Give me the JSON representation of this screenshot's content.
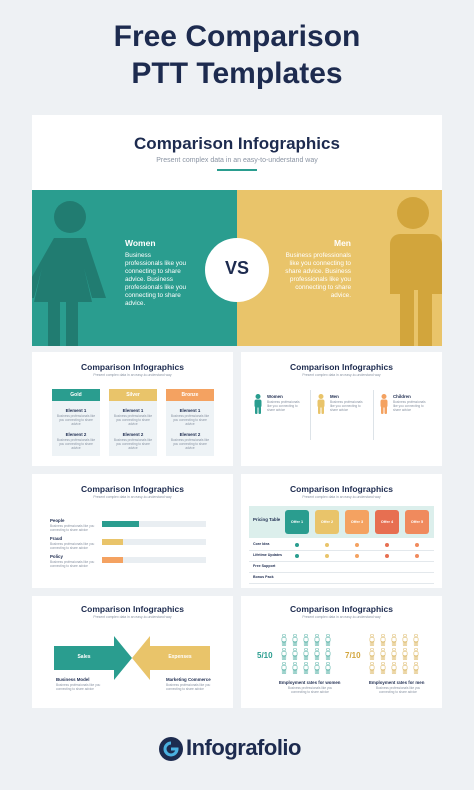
{
  "header": {
    "title_lines": [
      "Free Comparison",
      "PTT Templates"
    ]
  },
  "hero": {
    "title": "Comparison Infographics",
    "subtitle": "Present complex data in an easy-to-understand way",
    "left_label": "Women",
    "left_text": "Business professionals like you connecting to share advice. Business professionals like you connecting to share advice.",
    "vs": "VS",
    "right_label": "Men",
    "right_text": "Business professionals like you connecting to share advice. Business professionals like you connecting to share advice."
  },
  "thumbs": [
    {
      "title": "Comparison Infographics",
      "subtitle": "Present complex data in an easy-to-understand way",
      "columns": [
        {
          "label": "Gold",
          "items": [
            {
              "name": "Element 1",
              "desc": "Business professionals like you connecting to share advice"
            },
            {
              "name": "Element 2",
              "desc": "Business professionals like you connecting to share advice"
            }
          ]
        },
        {
          "label": "Silver",
          "items": [
            {
              "name": "Element 1",
              "desc": "Business professionals like you connecting to share advice"
            },
            {
              "name": "Element 2",
              "desc": "Business professionals like you connecting to share advice"
            }
          ]
        },
        {
          "label": "Bronze",
          "items": [
            {
              "name": "Element 1",
              "desc": "Business professionals like you connecting to share advice"
            },
            {
              "name": "Element 2",
              "desc": "Business professionals like you connecting to share advice"
            }
          ]
        }
      ]
    },
    {
      "title": "Comparison Infographics",
      "subtitle": "Present complex data in an easy-to-understand way",
      "items": [
        {
          "name": "Women",
          "desc": "Business professionals like you connecting to share advice"
        },
        {
          "name": "Men",
          "desc": "Business professionals like you connecting to share advice"
        },
        {
          "name": "Children",
          "desc": "Business professionals like you connecting to share advice"
        }
      ]
    },
    {
      "title": "Comparison Infographics",
      "subtitle": "Present complex data in an easy-to-understand way",
      "rows": [
        {
          "name": "People",
          "desc": "Business professionals like you connecting to share advice",
          "value": 36
        },
        {
          "name": "Fraud",
          "desc": "Business professionals like you connecting to share advice",
          "value": 20
        },
        {
          "name": "Policy",
          "desc": "Business professionals like you connecting to share advice",
          "value": 20
        }
      ]
    },
    {
      "title": "Comparison Infographics",
      "subtitle": "Present complex data in an easy-to-understand way",
      "table_label": "Pricing Table",
      "offers": [
        "Offer 1",
        "Offer 2",
        "Offer 3",
        "Offer 4",
        "Offer 5"
      ],
      "rows": [
        "Core Idea",
        "Lifetime Updates",
        "Free Support",
        "Bonus Pack"
      ]
    },
    {
      "title": "Comparison Infographics",
      "subtitle": "Present complex data in an easy-to-understand way",
      "left_arrow": "Sales",
      "right_arrow": "Expenses",
      "left_name": "Business Model",
      "left_desc": "Business professionals like you connecting to share advice",
      "right_name": "Marketing Commerce",
      "right_desc": "Business professionals like you connecting to share advice"
    },
    {
      "title": "Comparison Infographics",
      "subtitle": "Present complex data in an easy-to-understand way",
      "left_rate": "5/10",
      "right_rate": "7/10",
      "left_name": "Employment rates for women",
      "left_desc": "Business professionals like you connecting to share advice",
      "right_name": "Employment rates for men",
      "right_desc": "Business professionals like you connecting to share advice"
    }
  ],
  "footer": {
    "brand": "Infografolio"
  }
}
